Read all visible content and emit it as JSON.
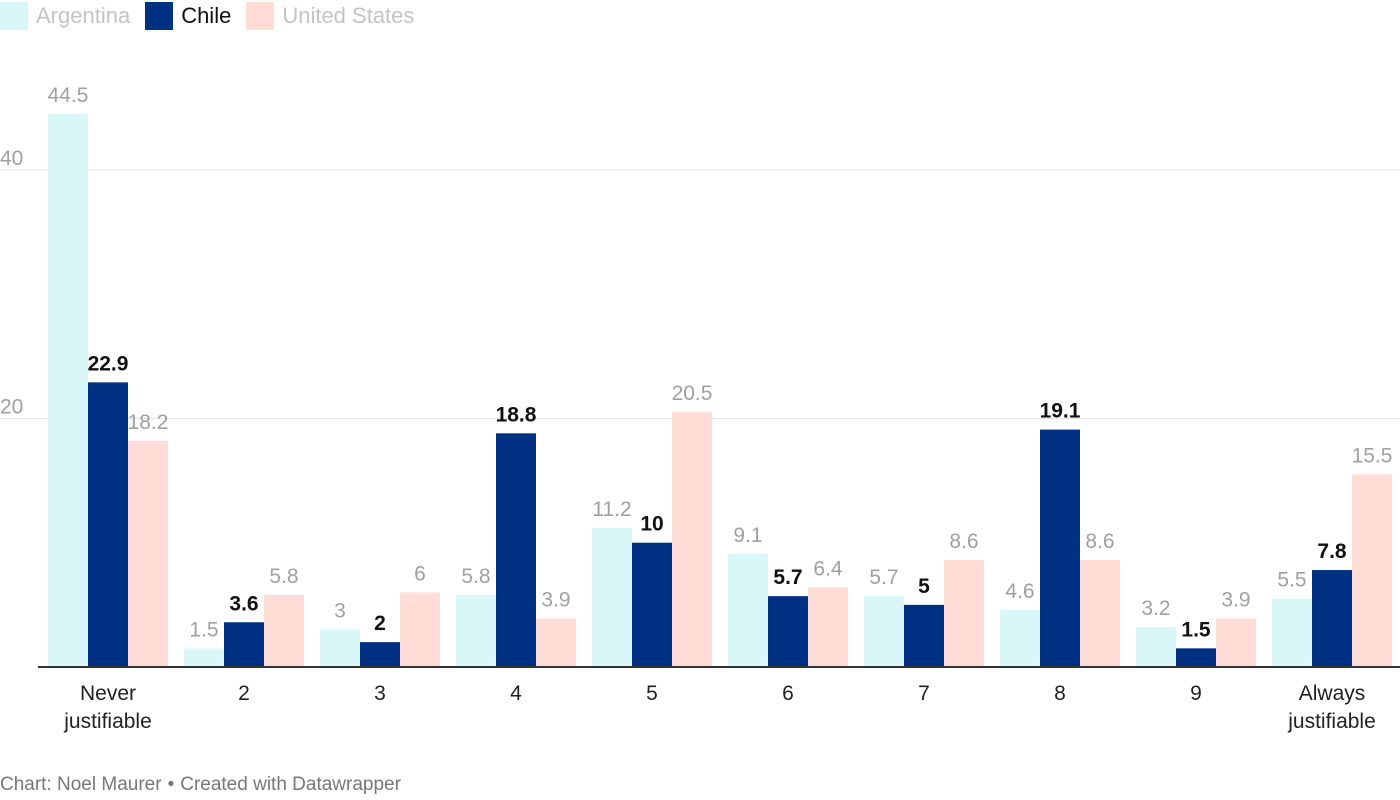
{
  "chart_data": {
    "type": "bar",
    "categories": [
      "Never justifiable",
      "2",
      "3",
      "4",
      "5",
      "6",
      "7",
      "8",
      "9",
      "Always justifiable"
    ],
    "series": [
      {
        "name": "Argentina",
        "color": "#d9f7f9",
        "label_color": "#a0a0a0",
        "label_bold": false,
        "values": [
          44.5,
          1.5,
          3,
          5.8,
          11.2,
          9.1,
          5.7,
          4.6,
          3.2,
          5.5
        ]
      },
      {
        "name": "Chile",
        "color": "#003082",
        "label_color": "#111111",
        "label_bold": true,
        "values": [
          22.9,
          3.6,
          2,
          18.8,
          10,
          5.7,
          5,
          19.1,
          1.5,
          7.8
        ]
      },
      {
        "name": "United States",
        "color": "#ffdcd5",
        "label_color": "#a0a0a0",
        "label_bold": false,
        "values": [
          18.2,
          5.8,
          6,
          3.9,
          20.5,
          6.4,
          8.6,
          8.6,
          3.9,
          15.5
        ]
      }
    ],
    "yticks": [
      20,
      40
    ],
    "ylim": [
      0,
      44.5
    ],
    "grid": true,
    "legend": "top-left",
    "title": "",
    "xlabel": "",
    "ylabel": ""
  },
  "footer": {
    "credit": "Chart: Noel Maurer",
    "separator": "•",
    "created": "Created with Datawrapper"
  }
}
